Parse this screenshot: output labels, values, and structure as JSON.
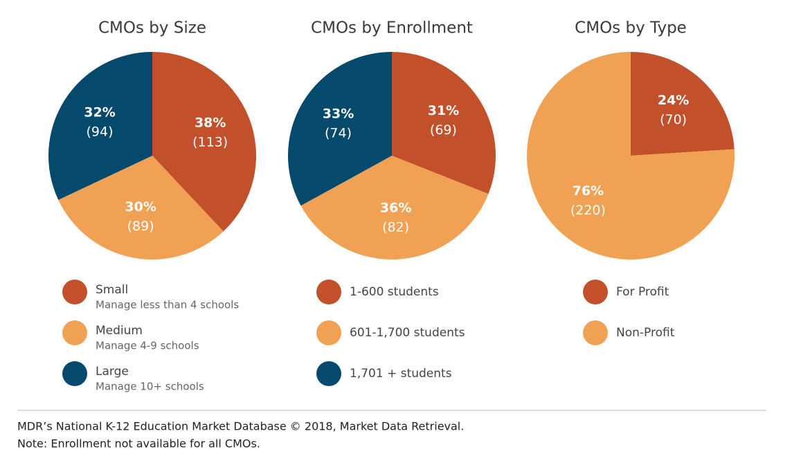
{
  "chart_data": [
    {
      "type": "pie",
      "title": "CMOs by Size",
      "categories": [
        "Small",
        "Medium",
        "Large"
      ],
      "descriptions": [
        "Manage less than 4 schools",
        "Manage 4-9 schools",
        "Manage 10+ schools"
      ],
      "values": [
        38,
        30,
        32
      ],
      "value_labels": [
        "38%",
        "30%",
        "32%"
      ],
      "counts": [
        113,
        89,
        94
      ],
      "count_labels": [
        "(113)",
        "(89)",
        "(94)"
      ],
      "colors": [
        "#c2502b",
        "#f0a153",
        "#054a6c"
      ]
    },
    {
      "type": "pie",
      "title": "CMOs by Enrollment",
      "categories": [
        "1-600 students",
        "601-1,700 students",
        "1,701 + students"
      ],
      "values": [
        31,
        36,
        33
      ],
      "value_labels": [
        "31%",
        "36%",
        "33%"
      ],
      "counts": [
        69,
        82,
        74
      ],
      "count_labels": [
        "(69)",
        "(82)",
        "(74)"
      ],
      "colors": [
        "#c2502b",
        "#f0a153",
        "#054a6c"
      ]
    },
    {
      "type": "pie",
      "title": "CMOs by Type",
      "categories": [
        "For Profit",
        "Non-Profit"
      ],
      "values": [
        24,
        76
      ],
      "value_labels": [
        "24%",
        "76%"
      ],
      "counts": [
        70,
        220
      ],
      "count_labels": [
        "(70)",
        "(220)"
      ],
      "colors": [
        "#c2502b",
        "#f0a153"
      ]
    }
  ],
  "footer": {
    "source": "MDR’s National K-12 Education Market Database © 2018, Market Data Retrieval.",
    "note": "Note: Enrollment not available for all CMOs."
  }
}
